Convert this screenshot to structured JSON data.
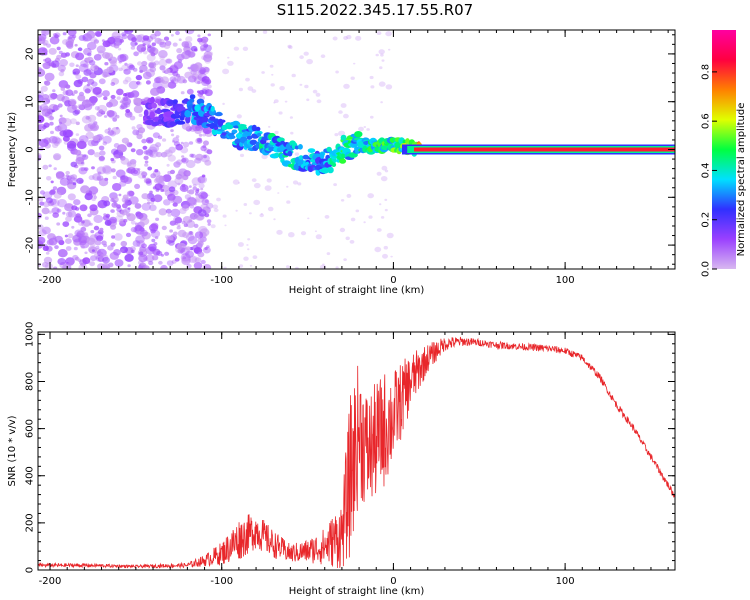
{
  "title": "S115.2022.345.17.55.R07",
  "chart_data": [
    {
      "type": "heatmap",
      "title": "",
      "xlabel": "Height of straight line (km)",
      "ylabel": "Frequency (Hz)",
      "xlim": [
        -207,
        164
      ],
      "ylim": [
        -25,
        25
      ],
      "xticks": [
        -200,
        -100,
        0,
        100
      ],
      "yticks": [
        -20,
        -10,
        0,
        10,
        20
      ],
      "grid": false,
      "colorbar": {
        "label": "Normalized spectral amplitude",
        "range": [
          0,
          0.97
        ],
        "ticks": [
          0.0,
          0.2,
          0.4,
          0.6,
          0.8
        ],
        "colormap": [
          "#d8b8f0",
          "#9a40ff",
          "#3030ff",
          "#00e0ff",
          "#00ff40",
          "#e0ff00",
          "#ff8000",
          "#ff0040",
          "#ff00a0"
        ]
      },
      "ridge": {
        "x": [
          -140,
          -128,
          -118,
          -110,
          -100,
          -90,
          -80,
          -70,
          -60,
          -50,
          -40,
          -30,
          -20,
          -10,
          0,
          10,
          20,
          40,
          60,
          80,
          100,
          120,
          140,
          164
        ],
        "y": [
          8,
          7.5,
          9,
          7,
          5,
          3,
          2,
          1,
          -1,
          -2,
          -3,
          0,
          1,
          0.5,
          1,
          0.5,
          0,
          0,
          0,
          0,
          0,
          0,
          0,
          0
        ],
        "amplitude": [
          0.15,
          0.2,
          0.35,
          0.3,
          0.35,
          0.35,
          0.4,
          0.4,
          0.4,
          0.35,
          0.35,
          0.45,
          0.45,
          0.45,
          0.5,
          0.6,
          0.85,
          0.85,
          0.85,
          0.85,
          0.85,
          0.85,
          0.85,
          0.85
        ]
      }
    },
    {
      "type": "line",
      "title": "",
      "xlabel": "Height of straight line (km)",
      "ylabel": "SNR (10 * v/v)",
      "xlim": [
        -207,
        164
      ],
      "ylim": [
        0,
        1010
      ],
      "xticks": [
        -200,
        -100,
        0,
        100
      ],
      "yticks": [
        0,
        200,
        400,
        600,
        800,
        1000
      ],
      "grid": false,
      "color": "#e8262a",
      "series": [
        {
          "x": [
            -207,
            -180,
            -150,
            -120,
            -110,
            -100,
            -90,
            -80,
            -70,
            -60,
            -50,
            -40,
            -30,
            -25,
            -20,
            -15,
            -10,
            -5,
            0,
            10,
            20,
            30,
            40,
            50,
            60,
            70,
            80,
            90,
            100,
            110,
            120,
            130,
            140,
            150,
            160,
            164
          ],
          "y": [
            20,
            20,
            15,
            20,
            40,
            70,
            130,
            170,
            110,
            70,
            80,
            100,
            150,
            400,
            600,
            500,
            550,
            600,
            650,
            800,
            900,
            960,
            970,
            965,
            955,
            950,
            945,
            940,
            930,
            900,
            820,
            700,
            600,
            480,
            360,
            310
          ],
          "noise": [
            8,
            8,
            6,
            10,
            25,
            50,
            90,
            80,
            60,
            40,
            50,
            80,
            150,
            350,
            300,
            250,
            250,
            250,
            200,
            120,
            60,
            30,
            20,
            15,
            15,
            15,
            15,
            15,
            15,
            15,
            15,
            15,
            15,
            15,
            15,
            15
          ]
        }
      ]
    }
  ]
}
